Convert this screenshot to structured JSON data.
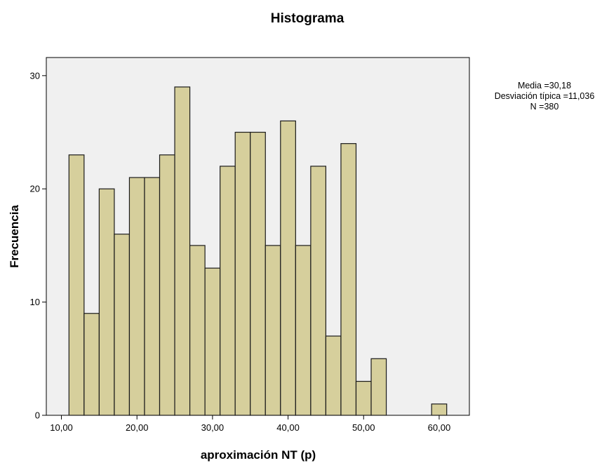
{
  "chart_data": {
    "type": "bar",
    "title": "Histograma",
    "xlabel": "aproximación NT (p)",
    "ylabel": "Frecuencia",
    "bin_width": 2,
    "x": [
      12,
      14,
      16,
      18,
      20,
      22,
      24,
      26,
      28,
      30,
      32,
      34,
      36,
      38,
      40,
      42,
      44,
      46,
      48,
      50,
      52,
      54,
      56,
      58,
      60
    ],
    "values": [
      23,
      9,
      20,
      16,
      21,
      21,
      23,
      29,
      15,
      13,
      22,
      25,
      25,
      15,
      26,
      15,
      22,
      7,
      24,
      3,
      5,
      0,
      0,
      0,
      1
    ],
    "xlim": [
      8,
      64
    ],
    "ylim": [
      0,
      31.6
    ],
    "x_ticks": [
      10,
      20,
      30,
      40,
      50,
      60
    ],
    "x_tick_labels": [
      "10,00",
      "20,00",
      "30,00",
      "40,00",
      "50,00",
      "60,00"
    ],
    "y_ticks": [
      0,
      10,
      20,
      30
    ],
    "y_tick_labels": [
      "0",
      "10",
      "20",
      "30"
    ],
    "grid": false,
    "stats": {
      "media": "Media =30,18",
      "desviacion": "Desviación típica =11,036",
      "n": "N =380"
    },
    "colors": {
      "bar_fill": "#d6cf9c",
      "bar_stroke": "#1a1a1a",
      "plot_background": "#f0f0f0"
    }
  }
}
